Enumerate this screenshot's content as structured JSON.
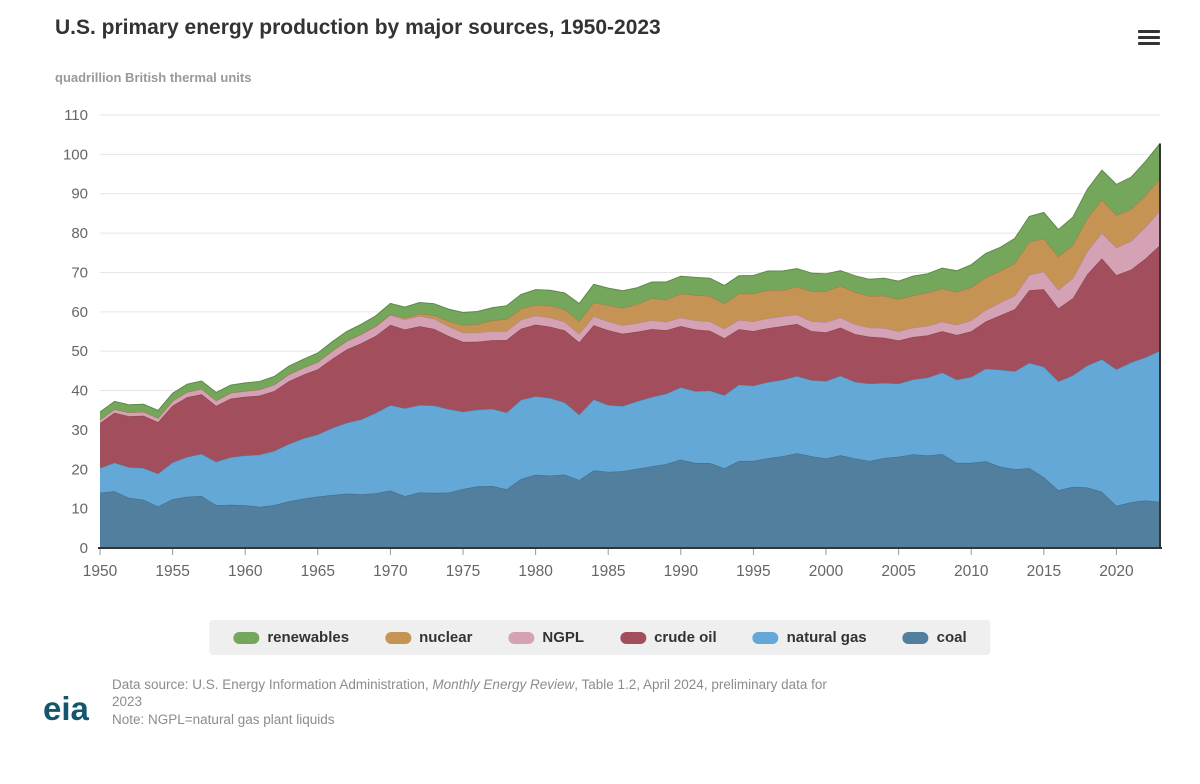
{
  "header": {
    "title": "U.S. primary energy production by major sources, 1950-2023",
    "subtitle": "quadrillion British thermal units"
  },
  "menu": {
    "icon": "hamburger-export-menu"
  },
  "chart_data": {
    "type": "area",
    "stacked": true,
    "title": "U.S. primary energy production by major sources, 1950-2023",
    "ylabel": "quadrillion British thermal units",
    "xlabel": "",
    "grid": true,
    "legend_position": "bottom",
    "x_start": 1950,
    "x_end": 2023,
    "x_ticks": [
      1950,
      1955,
      1960,
      1965,
      1970,
      1975,
      1980,
      1985,
      1990,
      1995,
      2000,
      2005,
      2010,
      2015,
      2020
    ],
    "y_ticks": [
      0,
      10,
      20,
      30,
      40,
      50,
      60,
      70,
      80,
      90,
      100,
      110
    ],
    "ylim": [
      0,
      110
    ],
    "axis_color": "#333333",
    "grid_color": "#e6e6e6",
    "label_color": "#666666",
    "series": [
      {
        "name": "coal",
        "color": "#527f9e",
        "values": [
          14.06,
          14.42,
          12.73,
          12.28,
          10.54,
          12.37,
          13.04,
          13.21,
          10.88,
          10.98,
          10.82,
          10.44,
          10.9,
          11.85,
          12.52,
          13.06,
          13.47,
          13.83,
          13.61,
          13.86,
          14.61,
          13.19,
          14.09,
          13.99,
          14.07,
          14.99,
          15.65,
          15.76,
          14.91,
          17.54,
          18.6,
          18.38,
          18.64,
          17.25,
          19.72,
          19.33,
          19.51,
          20.14,
          20.74,
          21.35,
          22.46,
          21.59,
          21.59,
          20.22,
          22.11,
          22.13,
          22.79,
          23.31,
          24.05,
          23.3,
          22.74,
          23.55,
          22.73,
          22.09,
          22.85,
          23.19,
          23.79,
          23.49,
          23.85,
          21.62,
          21.63,
          22.04,
          20.68,
          20.0,
          20.29,
          17.95,
          14.67,
          15.57,
          15.37,
          14.26,
          10.7,
          11.6,
          12.07,
          11.76
        ]
      },
      {
        "name": "natural gas",
        "color": "#64a8d8",
        "values": [
          6.23,
          7.22,
          7.76,
          8.01,
          8.33,
          9.34,
          10.08,
          10.68,
          11.03,
          12.05,
          12.66,
          13.25,
          13.73,
          14.55,
          15.29,
          15.78,
          17.01,
          17.94,
          19.07,
          20.45,
          21.67,
          22.28,
          22.21,
          22.19,
          21.21,
          19.64,
          19.48,
          19.57,
          19.49,
          20.08,
          19.91,
          19.7,
          18.32,
          16.59,
          18.01,
          16.98,
          16.54,
          17.14,
          17.6,
          17.85,
          18.33,
          18.23,
          18.38,
          18.58,
          19.35,
          19.08,
          19.34,
          19.39,
          19.61,
          19.34,
          19.66,
          20.17,
          19.44,
          19.63,
          19.07,
          18.56,
          19.02,
          19.81,
          20.7,
          21.14,
          21.81,
          23.51,
          24.62,
          24.86,
          26.72,
          28.06,
          27.62,
          28.29,
          31.0,
          33.65,
          34.68,
          35.52,
          36.35,
          38.3
        ]
      },
      {
        "name": "crude oil",
        "color": "#a34e5c",
        "values": [
          11.45,
          12.71,
          12.98,
          13.31,
          13.11,
          14.41,
          15.18,
          15.18,
          14.2,
          14.93,
          14.93,
          15.02,
          15.22,
          15.97,
          16.2,
          16.52,
          17.57,
          18.65,
          19.31,
          19.56,
          20.4,
          20.03,
          20.04,
          19.49,
          18.57,
          17.73,
          17.26,
          17.45,
          18.43,
          18.1,
          18.25,
          18.15,
          18.31,
          18.39,
          18.85,
          18.99,
          18.38,
          17.67,
          17.28,
          16.12,
          15.57,
          15.7,
          15.22,
          14.49,
          14.1,
          13.89,
          13.72,
          13.66,
          13.24,
          12.45,
          12.36,
          12.28,
          12.16,
          11.93,
          11.5,
          10.96,
          10.8,
          10.72,
          10.51,
          11.34,
          11.59,
          11.99,
          13.78,
          15.77,
          18.45,
          19.72,
          18.58,
          19.6,
          23.17,
          25.63,
          23.95,
          23.56,
          25.11,
          26.86
        ]
      },
      {
        "name": "NGPL",
        "color": "#d4a1b5",
        "values": [
          0.82,
          0.9,
          0.95,
          1.0,
          1.05,
          1.24,
          1.31,
          1.35,
          1.35,
          1.43,
          1.46,
          1.53,
          1.6,
          1.67,
          1.74,
          1.88,
          1.99,
          2.12,
          2.28,
          2.43,
          2.51,
          2.54,
          2.6,
          2.57,
          2.47,
          2.37,
          2.33,
          2.33,
          2.25,
          2.29,
          2.25,
          2.31,
          2.19,
          2.18,
          2.27,
          2.24,
          2.15,
          2.22,
          2.26,
          2.16,
          2.17,
          2.31,
          2.36,
          2.41,
          2.39,
          2.44,
          2.53,
          2.5,
          2.42,
          2.53,
          2.61,
          2.55,
          2.56,
          2.35,
          2.47,
          2.33,
          2.36,
          2.41,
          2.42,
          2.57,
          2.78,
          2.93,
          3.25,
          3.47,
          3.93,
          4.47,
          4.7,
          5.09,
          5.84,
          6.49,
          7.0,
          7.26,
          7.99,
          8.83
        ]
      },
      {
        "name": "nuclear",
        "color": "#c59455",
        "values": [
          0,
          0,
          0,
          0,
          0,
          0,
          0,
          0,
          0,
          0,
          0.01,
          0.02,
          0.03,
          0.04,
          0.04,
          0.04,
          0.06,
          0.09,
          0.14,
          0.15,
          0.24,
          0.41,
          0.58,
          0.91,
          1.27,
          1.9,
          2.11,
          2.7,
          3.02,
          2.78,
          2.74,
          3.01,
          3.13,
          3.2,
          3.55,
          4.08,
          4.38,
          4.75,
          5.59,
          5.6,
          6.1,
          6.42,
          6.48,
          6.41,
          6.69,
          7.08,
          7.09,
          6.6,
          7.07,
          7.61,
          7.86,
          8.03,
          8.15,
          7.96,
          8.22,
          8.16,
          8.21,
          8.46,
          8.43,
          8.36,
          8.43,
          8.27,
          8.06,
          8.24,
          8.34,
          8.34,
          8.42,
          8.42,
          8.44,
          8.46,
          8.25,
          8.13,
          8.06,
          8.1
        ]
      },
      {
        "name": "renewables",
        "color": "#74a75c",
        "values": [
          2.0,
          2.0,
          1.95,
          1.9,
          1.9,
          1.95,
          2.0,
          2.0,
          2.05,
          2.0,
          2.05,
          2.05,
          2.1,
          2.1,
          2.15,
          2.25,
          2.3,
          2.4,
          2.45,
          2.55,
          2.7,
          2.75,
          2.85,
          2.9,
          3.1,
          3.2,
          3.25,
          3.2,
          3.45,
          3.6,
          3.9,
          3.95,
          4.2,
          4.5,
          4.6,
          4.4,
          4.4,
          4.2,
          4.1,
          4.5,
          4.4,
          4.5,
          4.5,
          4.6,
          4.5,
          4.6,
          4.9,
          4.9,
          4.6,
          4.6,
          4.4,
          3.9,
          4.1,
          4.3,
          4.4,
          4.6,
          4.9,
          4.8,
          5.2,
          5.4,
          5.7,
          6.1,
          6.0,
          6.3,
          6.5,
          6.7,
          6.9,
          7.1,
          7.3,
          7.5,
          7.8,
          8.1,
          8.6,
          8.9
        ]
      }
    ],
    "legend_order": [
      "renewables",
      "nuclear",
      "NGPL",
      "crude oil",
      "natural gas",
      "coal"
    ]
  },
  "footer": {
    "source_prefix": "Data source: U.S. Energy Information Administration, ",
    "source_italic": "Monthly Energy Review",
    "source_suffix": ", Table 1.2, April 2024, preliminary data for",
    "source_line2": "2023",
    "note": "Note: NGPL=natural gas plant liquids",
    "logo_text": "eia"
  }
}
